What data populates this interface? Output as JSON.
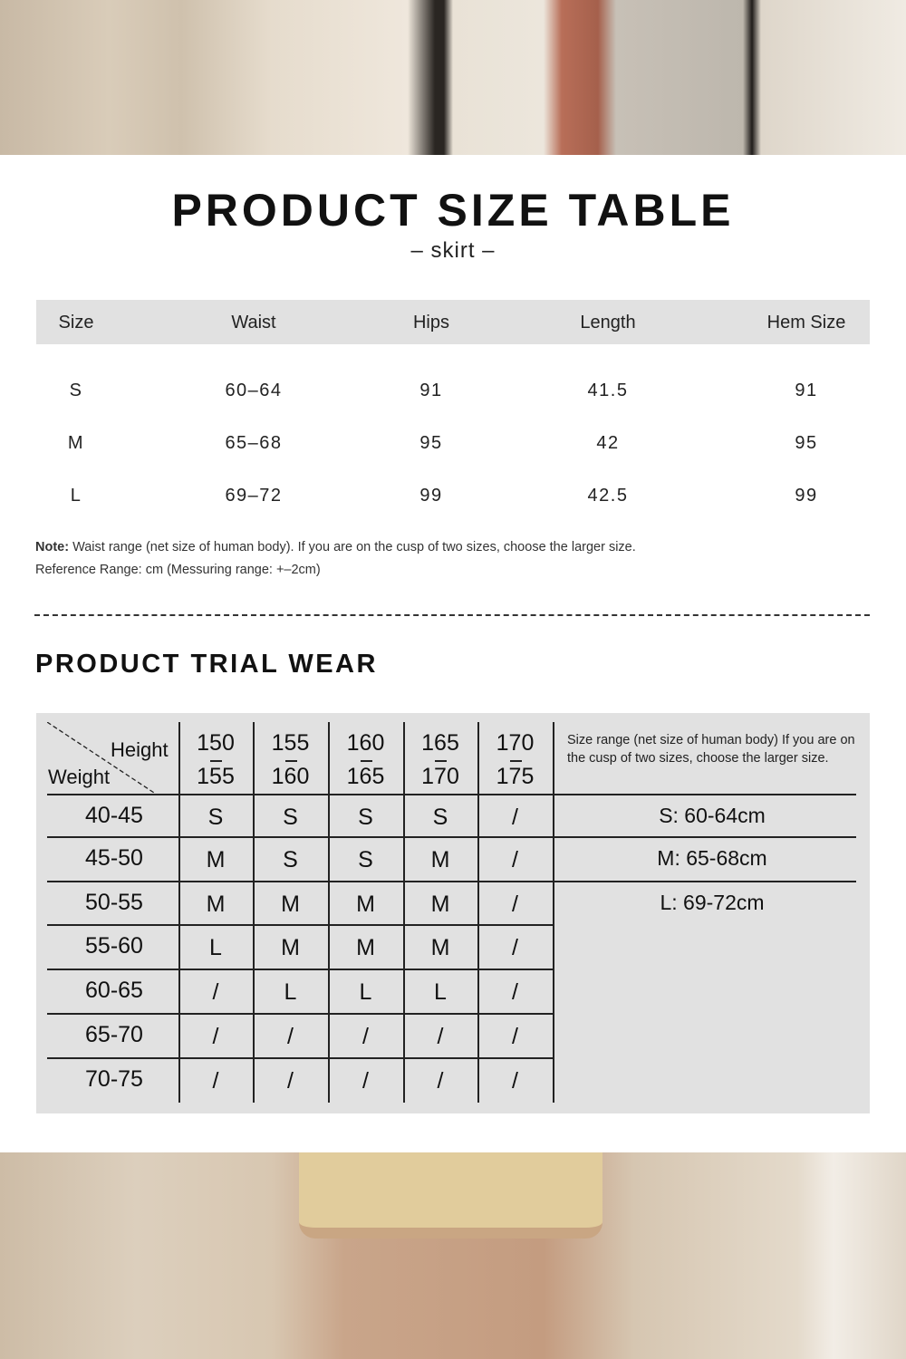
{
  "size_table": {
    "title": "PRODUCT SIZE TABLE",
    "subtitle": "– skirt –",
    "headers": [
      "Size",
      "Waist",
      "Hips",
      "Length",
      "Hem Size"
    ],
    "rows": [
      [
        "S",
        "60–64",
        "91",
        "41.5",
        "91"
      ],
      [
        "M",
        "65–68",
        "95",
        "42",
        "95"
      ],
      [
        "L",
        "69–72",
        "99",
        "42.5",
        "99"
      ]
    ],
    "note_label": "Note:",
    "note_text": " Waist range (net size of human body). If you are on the cusp of two sizes, choose the larger size.",
    "reference": "Reference Range: cm (Messuring range: +–2cm)"
  },
  "trial": {
    "title": "PRODUCT TRIAL WEAR",
    "height_label": "Height",
    "weight_label": "Weight",
    "heights": [
      [
        "150",
        "155"
      ],
      [
        "155",
        "160"
      ],
      [
        "160",
        "165"
      ],
      [
        "165",
        "170"
      ],
      [
        "170",
        "175"
      ]
    ],
    "rows": [
      {
        "weight": "40-45",
        "sizes": [
          "S",
          "S",
          "S",
          "S",
          "/"
        ]
      },
      {
        "weight": "45-50",
        "sizes": [
          "M",
          "S",
          "S",
          "M",
          "/"
        ]
      },
      {
        "weight": "50-55",
        "sizes": [
          "M",
          "M",
          "M",
          "M",
          "/"
        ]
      },
      {
        "weight": "55-60",
        "sizes": [
          "L",
          "M",
          "M",
          "M",
          "/"
        ]
      },
      {
        "weight": "60-65",
        "sizes": [
          "/",
          "L",
          "L",
          "L",
          "/"
        ]
      },
      {
        "weight": "65-70",
        "sizes": [
          "/",
          "/",
          "/",
          "/",
          "/"
        ]
      },
      {
        "weight": "70-75",
        "sizes": [
          "/",
          "/",
          "/",
          "/",
          "/"
        ]
      }
    ],
    "range_note": "Size range (net size of human body) If you are on the cusp of two sizes, choose the larger size.",
    "ranges": [
      "S: 60-64cm",
      "M: 65-68cm",
      "L: 69-72cm"
    ]
  }
}
